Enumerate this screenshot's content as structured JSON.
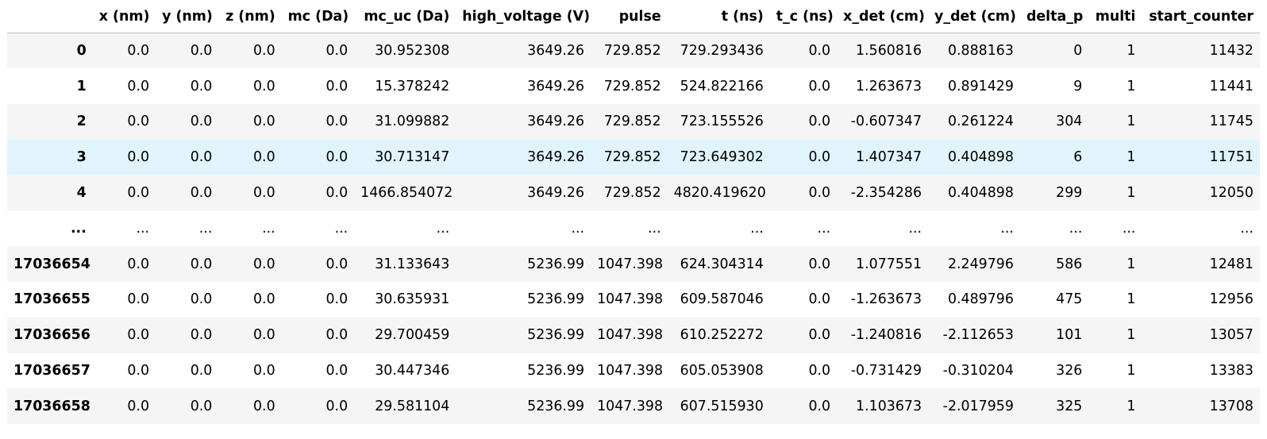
{
  "table": {
    "columns": [
      "",
      "x (nm)",
      "y (nm)",
      "z (nm)",
      "mc (Da)",
      "mc_uc (Da)",
      "high_voltage (V)",
      "pulse",
      "t (ns)",
      "t_c (ns)",
      "x_det (cm)",
      "y_det (cm)",
      "delta_p",
      "multi",
      "start_counter"
    ],
    "rows": [
      [
        "0",
        "0.0",
        "0.0",
        "0.0",
        "0.0",
        "30.952308",
        "3649.26",
        "729.852",
        "729.293436",
        "0.0",
        "1.560816",
        "0.888163",
        "0",
        "1",
        "11432"
      ],
      [
        "1",
        "0.0",
        "0.0",
        "0.0",
        "0.0",
        "15.378242",
        "3649.26",
        "729.852",
        "524.822166",
        "0.0",
        "1.263673",
        "0.891429",
        "9",
        "1",
        "11441"
      ],
      [
        "2",
        "0.0",
        "0.0",
        "0.0",
        "0.0",
        "31.099882",
        "3649.26",
        "729.852",
        "723.155526",
        "0.0",
        "-0.607347",
        "0.261224",
        "304",
        "1",
        "11745"
      ],
      [
        "3",
        "0.0",
        "0.0",
        "0.0",
        "0.0",
        "30.713147",
        "3649.26",
        "729.852",
        "723.649302",
        "0.0",
        "1.407347",
        "0.404898",
        "6",
        "1",
        "11751"
      ],
      [
        "4",
        "0.0",
        "0.0",
        "0.0",
        "0.0",
        "1466.854072",
        "3649.26",
        "729.852",
        "4820.419620",
        "0.0",
        "-2.354286",
        "0.404898",
        "299",
        "1",
        "12050"
      ],
      [
        "...",
        "...",
        "...",
        "...",
        "...",
        "...",
        "...",
        "...",
        "...",
        "...",
        "...",
        "...",
        "...",
        "...",
        "..."
      ],
      [
        "17036654",
        "0.0",
        "0.0",
        "0.0",
        "0.0",
        "31.133643",
        "5236.99",
        "1047.398",
        "624.304314",
        "0.0",
        "1.077551",
        "2.249796",
        "586",
        "1",
        "12481"
      ],
      [
        "17036655",
        "0.0",
        "0.0",
        "0.0",
        "0.0",
        "30.635931",
        "5236.99",
        "1047.398",
        "609.587046",
        "0.0",
        "-1.263673",
        "0.489796",
        "475",
        "1",
        "12956"
      ],
      [
        "17036656",
        "0.0",
        "0.0",
        "0.0",
        "0.0",
        "29.700459",
        "5236.99",
        "1047.398",
        "610.252272",
        "0.0",
        "-1.240816",
        "-2.112653",
        "101",
        "1",
        "13057"
      ],
      [
        "17036657",
        "0.0",
        "0.0",
        "0.0",
        "0.0",
        "30.447346",
        "5236.99",
        "1047.398",
        "605.053908",
        "0.0",
        "-0.731429",
        "-0.310204",
        "326",
        "1",
        "13383"
      ],
      [
        "17036658",
        "0.0",
        "0.0",
        "0.0",
        "0.0",
        "29.581104",
        "5236.99",
        "1047.398",
        "607.515930",
        "0.0",
        "1.103673",
        "-2.017959",
        "325",
        "1",
        "13708"
      ]
    ],
    "highlighted_row": 3
  },
  "colors": {
    "stripe": "#f5f5f5",
    "hover": "#e1f4fb",
    "header_rule": "#bdbdbd"
  }
}
